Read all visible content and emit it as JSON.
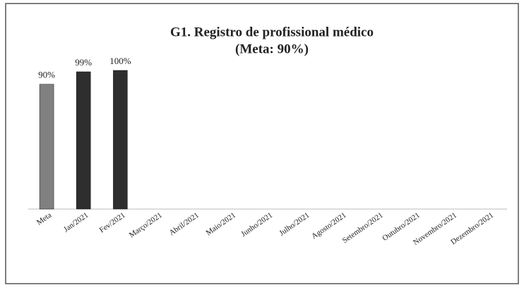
{
  "chart_data": {
    "type": "bar",
    "title": "G1. Registro de profissional médico",
    "subtitle": "(Meta: 90%)",
    "categories": [
      "Meta",
      "Jan/2021",
      "Fev/2021",
      "Março/2021",
      "Abril/2021",
      "Maio/2021",
      "Junho/2021",
      "Julho/2021",
      "Agosto/2021",
      "Setembro/2021",
      "Outubro/2021",
      "Novembro/2021",
      "Dezembro/2021"
    ],
    "values": [
      90,
      99,
      100,
      null,
      null,
      null,
      null,
      null,
      null,
      null,
      null,
      null,
      null
    ],
    "value_labels": [
      "90%",
      "99%",
      "100%",
      null,
      null,
      null,
      null,
      null,
      null,
      null,
      null,
      null,
      null
    ],
    "colors": [
      "#808080",
      "#2e2e2e",
      "#2e2e2e",
      "#2e2e2e",
      "#2e2e2e",
      "#2e2e2e",
      "#2e2e2e",
      "#2e2e2e",
      "#2e2e2e",
      "#2e2e2e",
      "#2e2e2e",
      "#2e2e2e",
      "#2e2e2e"
    ]
  }
}
